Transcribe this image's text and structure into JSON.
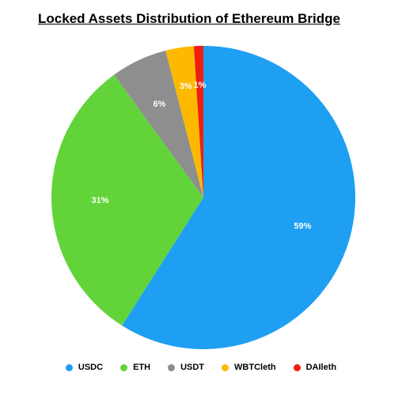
{
  "chart_data": {
    "type": "pie",
    "title": "Locked Assets Distribution of Ethereum Bridge",
    "slices": [
      {
        "name": "USDC",
        "value": 59,
        "label": "59%",
        "color": "#1e9ff2"
      },
      {
        "name": "ETH",
        "value": 31,
        "label": "31%",
        "color": "#62d43a"
      },
      {
        "name": "USDT",
        "value": 6,
        "label": "6%",
        "color": "#8e8e8e"
      },
      {
        "name": "WBTCleth",
        "value": 3,
        "label": "3%",
        "color": "#fcb900"
      },
      {
        "name": "DAIleth",
        "value": 1,
        "label": "1%",
        "color": "#f01e0f"
      }
    ],
    "start_angle_deg": 0,
    "direction": "clockwise",
    "legend_position": "bottom"
  }
}
